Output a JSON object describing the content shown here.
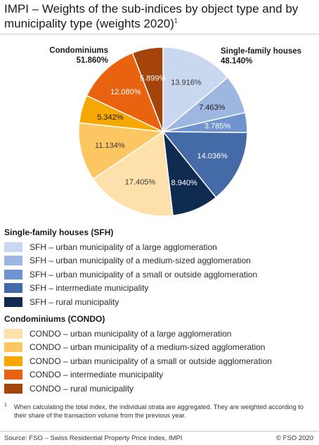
{
  "title": "IMPI – Weights of the sub-indices by object type and by municipality type (weights 2020)",
  "title_footnote_mark": "1",
  "group_callouts": {
    "condominiums": {
      "label": "Condominiums",
      "value": "51.860%"
    },
    "single_family": {
      "label": "Single-family houses",
      "value": "48.140%"
    }
  },
  "chart_data": {
    "type": "pie",
    "title": "IMPI – Weights of the sub-indices by object type and by municipality type (weights 2020)",
    "start_angle_deg": 0,
    "direction": "clockwise",
    "unit": "%",
    "groups": [
      {
        "name": "Single-family houses",
        "total": 48.14
      },
      {
        "name": "Condominiums",
        "total": 51.86
      }
    ],
    "slices": [
      {
        "label": "SFH – urban municipality of a large agglomeration",
        "value": 13.916,
        "value_label": "13.916%",
        "color": "#c9d8ee",
        "text_color": "#3a3a3a"
      },
      {
        "label": "SFH – urban municipality of a medium-sized agglomeration",
        "value": 7.463,
        "value_label": "7.463%",
        "color": "#9db7e0",
        "text_color": "#1a1a1a"
      },
      {
        "label": "SFH – urban municipality of a small or outside agglomeration",
        "value": 3.785,
        "value_label": "3.785%",
        "color": "#6f93cf",
        "text_color": "#ffffff"
      },
      {
        "label": "SFH – intermediate municipality",
        "value": 14.036,
        "value_label": "14.036%",
        "color": "#456aa8",
        "text_color": "#ffffff"
      },
      {
        "label": "SFH – rural municipality",
        "value": 8.94,
        "value_label": "8.940%",
        "color": "#0f2b4f",
        "text_color": "#ffffff"
      },
      {
        "label": "CONDO – urban municipality of a large agglomeration",
        "value": 17.405,
        "value_label": "17.405%",
        "color": "#fde0aa",
        "text_color": "#3a3a3a"
      },
      {
        "label": "CONDO – urban municipality of a medium-sized agglomeration",
        "value": 11.134,
        "value_label": "11.134%",
        "color": "#fcc662",
        "text_color": "#3a3a3a"
      },
      {
        "label": "CONDO – urban municipality of a small or outside agglomeration",
        "value": 5.342,
        "value_label": "5.342%",
        "color": "#f6a800",
        "text_color": "#1a1a1a"
      },
      {
        "label": "CONDO – intermediate municipality",
        "value": 12.08,
        "value_label": "12.080%",
        "color": "#e8620f",
        "text_color": "#ffffff"
      },
      {
        "label": "CONDO – rural municipality",
        "value": 5.899,
        "value_label": "5.899%",
        "color": "#a4430a",
        "text_color": "#ffffff"
      }
    ]
  },
  "legend": {
    "sfh_title": "Single-family houses (SFH)",
    "condo_title": "Condominiums (CONDO)",
    "sfh_items": [
      {
        "label": "SFH – urban municipality of a large agglomeration",
        "color": "#c9d8ee"
      },
      {
        "label": "SFH – urban municipality of a medium-sized agglomeration",
        "color": "#9db7e0"
      },
      {
        "label": "SFH – urban municipality of a small or outside agglomeration",
        "color": "#6f93cf"
      },
      {
        "label": "SFH – intermediate municipality",
        "color": "#456aa8"
      },
      {
        "label": "SFH – rural municipality",
        "color": "#0f2b4f"
      }
    ],
    "condo_items": [
      {
        "label": "CONDO – urban municipality of a large agglomeration",
        "color": "#fde0aa"
      },
      {
        "label": "CONDO – urban municipality of a medium-sized agglomeration",
        "color": "#fcc662"
      },
      {
        "label": "CONDO – urban municipality of a small or outside agglomeration",
        "color": "#f6a800"
      },
      {
        "label": "CONDO – intermediate municipality",
        "color": "#e8620f"
      },
      {
        "label": "CONDO – rural municipality",
        "color": "#a4430a"
      }
    ]
  },
  "footnote": {
    "mark": "1",
    "text": "When calculating the total index, the individual strata are aggregated. They are weighted according to their share of the transaction volume from the previous year."
  },
  "source": "Source: FSO – Swiss Residential Property Price Index, IMPI",
  "copyright": "© FSO 2020"
}
